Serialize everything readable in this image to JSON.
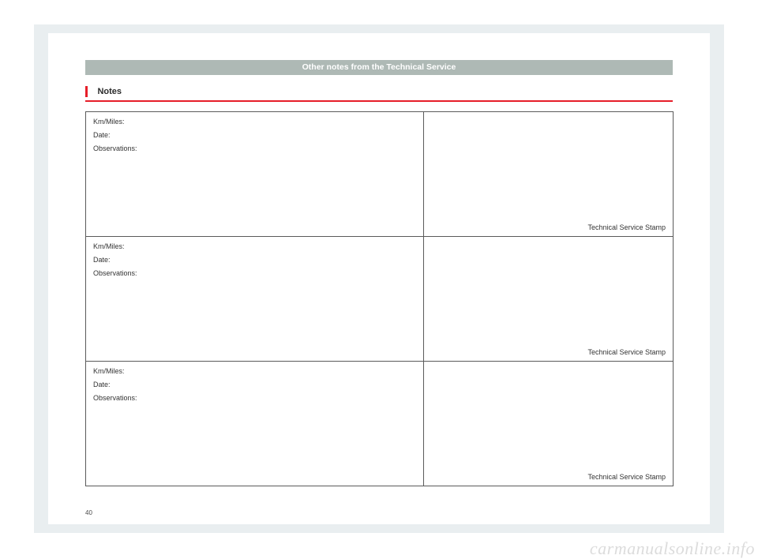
{
  "header": {
    "title": "Other notes from the Technical Service"
  },
  "section": {
    "title": "Notes"
  },
  "records": [
    {
      "km_label": "Km/Miles:",
      "date_label": "Date:",
      "obs_label": "Observations:",
      "stamp_label": "Technical Service Stamp"
    },
    {
      "km_label": "Km/Miles:",
      "date_label": "Date:",
      "obs_label": "Observations:",
      "stamp_label": "Technical Service Stamp"
    },
    {
      "km_label": "Km/Miles:",
      "date_label": "Date:",
      "obs_label": "Observations:",
      "stamp_label": "Technical Service Stamp"
    }
  ],
  "page_number": "40",
  "watermark": "carmanualsonline.info",
  "colors": {
    "page_bg": "#e9eef0",
    "header_bar": "#aeb9b5",
    "accent": "#e61e29",
    "border": "#5a5a5a",
    "watermark": "#dcdcdc"
  }
}
